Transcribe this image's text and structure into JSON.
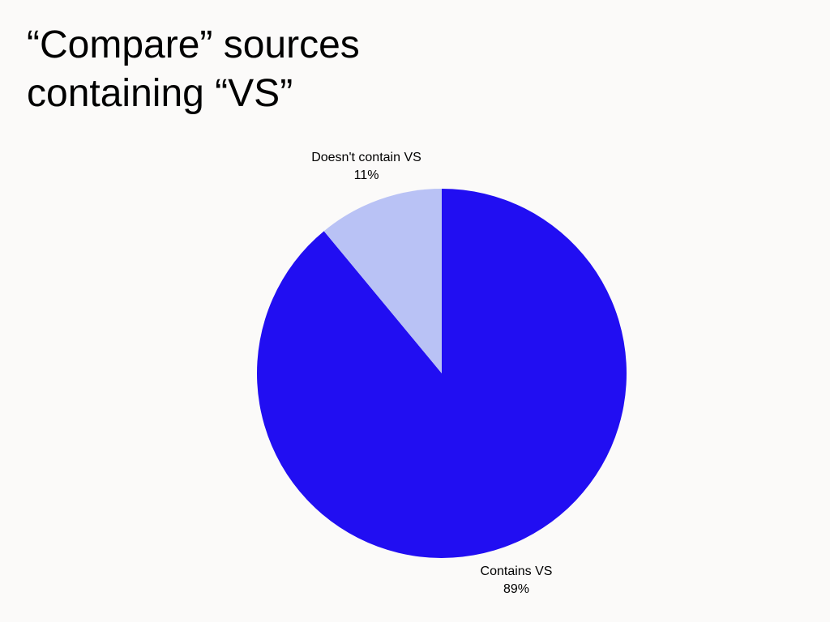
{
  "title_lines": [
    "“Compare” sources",
    "containing “VS”"
  ],
  "colors": {
    "background": "#fbfaf9",
    "contains": "#210ef2",
    "doesnt_contain": "#b9c2f5"
  },
  "chart_data": {
    "type": "pie",
    "title": "“Compare” sources containing “VS”",
    "start": "12 o'clock",
    "direction": "clockwise",
    "slices": [
      {
        "label": "Contains VS",
        "value": 89,
        "value_label": "89%",
        "color": "#210ef2"
      },
      {
        "label": "Doesn't contain VS",
        "value": 11,
        "value_label": "11%",
        "color": "#b9c2f5"
      }
    ]
  }
}
